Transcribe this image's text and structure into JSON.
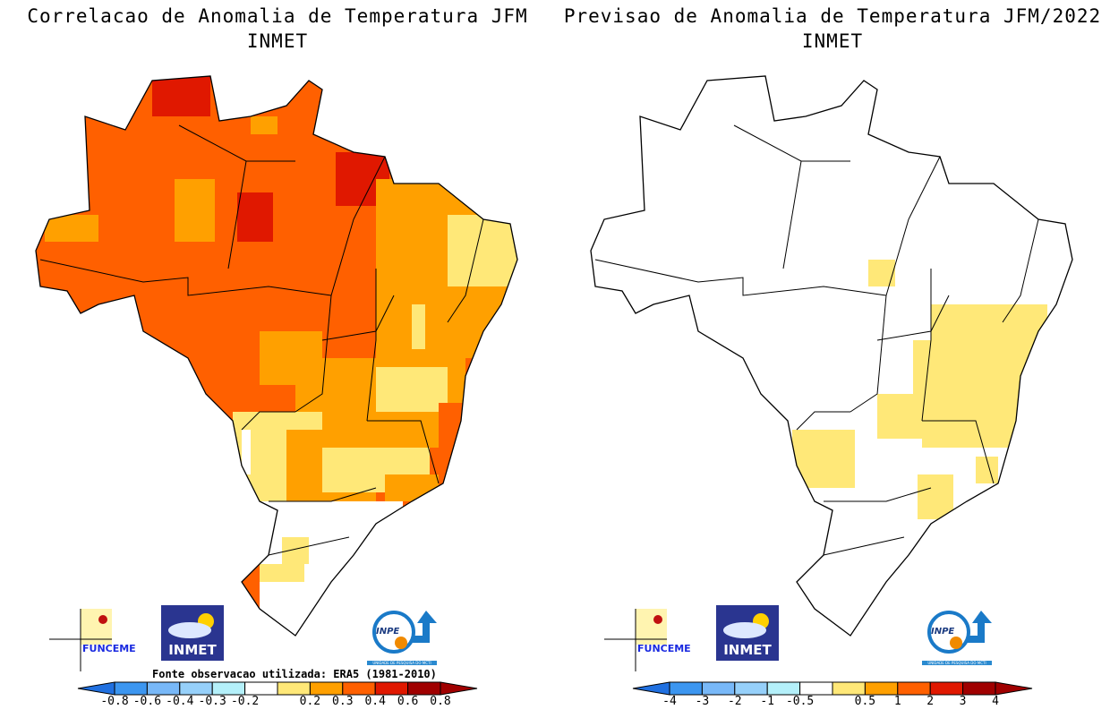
{
  "left_panel": {
    "title_line1": "Correlacao de Anomalia de Temperatura JFM",
    "title_line2": "INMET",
    "source_note": "Fonte observacao utilizada: ERA5 (1981-2010)",
    "colorbar": {
      "labels": [
        "-0.8",
        "-0.6",
        "-0.4",
        "-0.3",
        "-0.2",
        "0.2",
        "0.3",
        "0.4",
        "0.6",
        "0.8"
      ],
      "colors": [
        "#2070e0",
        "#3c96f0",
        "#78b8f8",
        "#96d0fa",
        "#b4f0fa",
        "#ffffff",
        "#ffe878",
        "#ffa000",
        "#ff6000",
        "#e01800",
        "#a00000"
      ]
    }
  },
  "right_panel": {
    "title_line1": "Previsao de Anomalia de Temperatura JFM/2022",
    "title_line2": "INMET",
    "colorbar": {
      "labels": [
        "-4",
        "-3",
        "-2",
        "-1",
        "-0.5",
        "0.5",
        "1",
        "2",
        "3",
        "4"
      ],
      "colors": [
        "#2070e0",
        "#3c96f0",
        "#78b8f8",
        "#96d0fa",
        "#b4f0fa",
        "#ffffff",
        "#ffe878",
        "#ffa000",
        "#ff6000",
        "#e01800",
        "#a00000"
      ]
    }
  },
  "logos": {
    "funceme": "FUNCEME",
    "inmet": "INMET",
    "inpe": "INPE",
    "inpe_sub": "UNIDADE DE PESQUISA DO MCTI"
  }
}
